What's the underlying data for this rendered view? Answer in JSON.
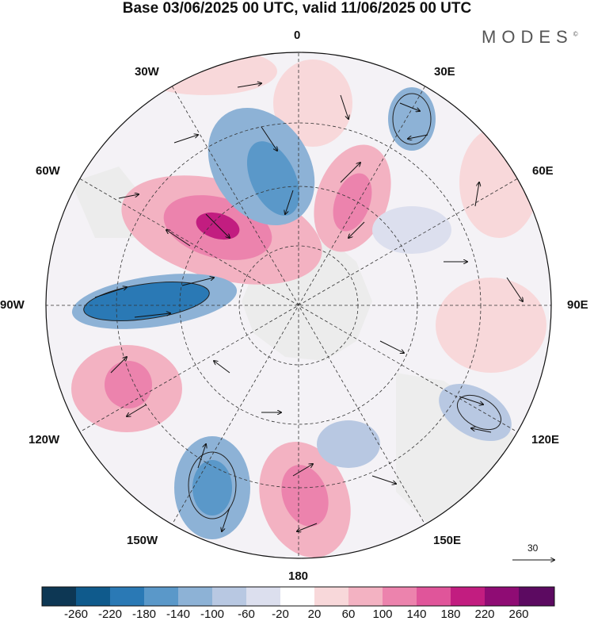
{
  "title": "Base 03/06/2025 00 UTC, valid 11/06/2025 00 UTC",
  "brand": "MODES",
  "brand_mark": "©",
  "longitude_labels": {
    "lon_0": "0",
    "lon_30e": "30E",
    "lon_60e": "60E",
    "lon_90e": "90E",
    "lon_120e": "120E",
    "lon_150e": "150E",
    "lon_180": "180",
    "lon_150w": "150W",
    "lon_120w": "120W",
    "lon_90w": "90W",
    "lon_60w": "60W",
    "lon_30w": "30W"
  },
  "reference_vector_label": "30",
  "colorbar": {
    "tick_labels": [
      "-260",
      "-220",
      "-180",
      "-140",
      "-100",
      "-60",
      "-20",
      "20",
      "60",
      "100",
      "140",
      "180",
      "220",
      "260"
    ],
    "colors": [
      "#0d3754",
      "#0f5a8c",
      "#2a79b5",
      "#5a98c9",
      "#8db2d6",
      "#b8c8e2",
      "#dcdfee",
      "#ffffff",
      "#f8d8da",
      "#f3b2c2",
      "#ec83ad",
      "#e0559a",
      "#c21d80",
      "#8f0c74",
      "#5c0a61"
    ]
  }
}
